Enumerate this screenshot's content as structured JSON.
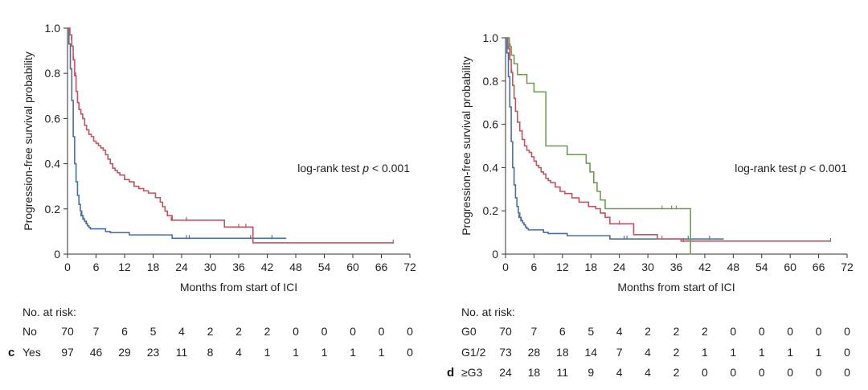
{
  "chart_data": [
    {
      "type": "line",
      "step": true,
      "panel_letter": "c",
      "ylabel": "Progression-free survival probability",
      "xlabel": "Months from start of ICI",
      "annotation_prefix": "log-rank test ",
      "annotation_p": "p",
      "annotation_suffix": " < 0.001",
      "xlim": [
        0,
        72
      ],
      "ylim": [
        0,
        1
      ],
      "xticks": [
        "0",
        "6",
        "12",
        "18",
        "24",
        "30",
        "36",
        "42",
        "48",
        "54",
        "60",
        "66",
        "72"
      ],
      "yticks": [
        "0",
        "0.2",
        "0.4",
        "0.6",
        "0.8",
        "1.0"
      ],
      "risk_title": "No. at risk:",
      "risk_times": [
        0,
        6,
        12,
        18,
        24,
        30,
        36,
        42,
        48,
        54,
        60,
        66,
        72
      ],
      "series": [
        {
          "name": "No",
          "color": "#4a6f9c",
          "x": [
            0,
            0.3,
            0.6,
            0.9,
            1.2,
            1.5,
            1.8,
            2.1,
            2.4,
            2.7,
            3.0,
            3.3,
            3.6,
            3.9,
            4.2,
            4.5,
            4.8,
            8.0,
            9.0,
            13.0,
            22.0,
            45.0,
            46
          ],
          "y": [
            1.0,
            0.93,
            0.82,
            0.68,
            0.52,
            0.4,
            0.32,
            0.26,
            0.22,
            0.19,
            0.17,
            0.155,
            0.145,
            0.135,
            0.125,
            0.118,
            0.112,
            0.1,
            0.095,
            0.085,
            0.07,
            0.07,
            0.07
          ],
          "censor_x": [
            2.8,
            3.2,
            3.6,
            4.0,
            25.0,
            25.6,
            38.5,
            43.0
          ],
          "censor_y": [
            0.17,
            0.155,
            0.145,
            0.135,
            0.07,
            0.07,
            0.07,
            0.07
          ]
        },
        {
          "name": "Yes",
          "color": "#c15462",
          "x": [
            0,
            0.5,
            0.9,
            1.2,
            1.5,
            1.8,
            2.1,
            2.4,
            2.8,
            3.2,
            3.6,
            4.0,
            4.5,
            5.0,
            5.5,
            6.0,
            6.5,
            7.0,
            7.5,
            8.0,
            8.5,
            9.0,
            9.5,
            10.0,
            10.5,
            11.0,
            12.0,
            13.0,
            14.0,
            15.0,
            16.0,
            17.0,
            18.5,
            19.5,
            20.0,
            20.5,
            21.0,
            22.0,
            27.0,
            33.0,
            39.0,
            68.5
          ],
          "y": [
            1.0,
            0.97,
            0.92,
            0.86,
            0.79,
            0.72,
            0.67,
            0.64,
            0.62,
            0.6,
            0.57,
            0.55,
            0.53,
            0.52,
            0.5,
            0.49,
            0.48,
            0.47,
            0.46,
            0.44,
            0.42,
            0.4,
            0.38,
            0.37,
            0.36,
            0.35,
            0.33,
            0.32,
            0.3,
            0.29,
            0.28,
            0.27,
            0.25,
            0.23,
            0.21,
            0.19,
            0.17,
            0.15,
            0.15,
            0.12,
            0.05,
            0.05
          ],
          "censor_x": [
            0.8,
            1.3,
            1.7,
            20.0,
            21.8,
            25.0,
            33.0,
            36.0,
            37.5,
            68.5
          ],
          "censor_y": [
            0.95,
            0.86,
            0.79,
            0.21,
            0.15,
            0.15,
            0.12,
            0.12,
            0.12,
            0.05
          ]
        }
      ],
      "risk_rows": [
        {
          "label": "No",
          "values": [
            "70",
            "7",
            "6",
            "5",
            "4",
            "2",
            "2",
            "2",
            "0",
            "0",
            "0",
            "0",
            "0"
          ]
        },
        {
          "label": "Yes",
          "values": [
            "97",
            "46",
            "29",
            "23",
            "11",
            "8",
            "4",
            "1",
            "1",
            "1",
            "1",
            "1",
            "0"
          ]
        }
      ]
    },
    {
      "type": "line",
      "step": true,
      "panel_letter": "d",
      "ylabel": "Progression-free survival probability",
      "xlabel": "Months from start of ICI",
      "annotation_prefix": "log-rank test ",
      "annotation_p": "p",
      "annotation_suffix": " < 0.001",
      "xlim": [
        0,
        72
      ],
      "ylim": [
        0,
        1
      ],
      "xticks": [
        "0",
        "6",
        "12",
        "18",
        "24",
        "30",
        "36",
        "42",
        "48",
        "54",
        "60",
        "66",
        "72"
      ],
      "yticks": [
        "0",
        "0.2",
        "0.4",
        "0.6",
        "0.8",
        "1.0"
      ],
      "risk_title": "No. at risk:",
      "risk_times": [
        0,
        6,
        12,
        18,
        24,
        30,
        36,
        42,
        48,
        54,
        60,
        66,
        72
      ],
      "series": [
        {
          "name": "G0",
          "color": "#4a6f9c",
          "x": [
            0,
            0.3,
            0.6,
            0.9,
            1.2,
            1.5,
            1.8,
            2.1,
            2.4,
            2.7,
            3.0,
            3.3,
            3.6,
            3.9,
            4.2,
            4.5,
            4.8,
            8.0,
            9.0,
            13.0,
            22.0,
            45.0,
            46
          ],
          "y": [
            1.0,
            0.93,
            0.82,
            0.68,
            0.52,
            0.4,
            0.32,
            0.26,
            0.22,
            0.19,
            0.17,
            0.155,
            0.145,
            0.135,
            0.125,
            0.118,
            0.112,
            0.1,
            0.095,
            0.085,
            0.07,
            0.07,
            0.07
          ],
          "censor_x": [
            2.8,
            3.2,
            25.0,
            25.6,
            38.5,
            43.0
          ],
          "censor_y": [
            0.17,
            0.155,
            0.07,
            0.07,
            0.07,
            0.07
          ]
        },
        {
          "name": "G1/2",
          "color": "#c15462",
          "x": [
            0,
            0.5,
            0.9,
            1.2,
            1.5,
            1.8,
            2.1,
            2.5,
            3.0,
            3.5,
            4.0,
            4.5,
            5.0,
            5.5,
            6.0,
            6.5,
            7.0,
            7.5,
            8.0,
            8.5,
            9.0,
            9.5,
            10.5,
            11.5,
            12.5,
            14.0,
            15.5,
            17.5,
            19.0,
            20.0,
            21.0,
            22.0,
            27.0,
            32.0,
            37.0,
            68.5
          ],
          "y": [
            1.0,
            0.95,
            0.9,
            0.84,
            0.78,
            0.72,
            0.66,
            0.61,
            0.57,
            0.53,
            0.5,
            0.48,
            0.47,
            0.45,
            0.43,
            0.41,
            0.4,
            0.38,
            0.37,
            0.35,
            0.34,
            0.33,
            0.31,
            0.29,
            0.28,
            0.26,
            0.24,
            0.22,
            0.21,
            0.19,
            0.17,
            0.14,
            0.09,
            0.07,
            0.06,
            0.06
          ],
          "censor_x": [
            0.7,
            1.3,
            24.0,
            33.0,
            37.5,
            68.5
          ],
          "censor_y": [
            0.95,
            0.84,
            0.14,
            0.07,
            0.06,
            0.06
          ],
          "end_x": 69
        },
        {
          "name": "≥G3",
          "color": "#6f9e4f",
          "x": [
            0,
            0.8,
            1.2,
            1.8,
            2.5,
            3.2,
            4.5,
            6.0,
            7.0,
            8.5,
            10.5,
            13.0,
            17.0,
            17.8,
            18.6,
            19.3,
            20.0,
            21.0,
            39.0,
            39.2
          ],
          "y": [
            1.0,
            0.96,
            0.92,
            0.88,
            0.83,
            0.83,
            0.79,
            0.75,
            0.75,
            0.5,
            0.5,
            0.46,
            0.42,
            0.38,
            0.33,
            0.29,
            0.25,
            0.21,
            0.0,
            0.0
          ],
          "censor_x": [
            1.0,
            33.0,
            35.0,
            36.0
          ],
          "censor_y": [
            0.96,
            0.21,
            0.21,
            0.21
          ]
        }
      ],
      "risk_rows": [
        {
          "label": "G0",
          "values": [
            "70",
            "7",
            "6",
            "5",
            "4",
            "2",
            "2",
            "2",
            "0",
            "0",
            "0",
            "0",
            "0"
          ]
        },
        {
          "label": "G1/2",
          "values": [
            "73",
            "28",
            "18",
            "14",
            "7",
            "4",
            "2",
            "1",
            "1",
            "1",
            "1",
            "1",
            "0"
          ]
        },
        {
          "label": "≥G3",
          "values": [
            "24",
            "18",
            "11",
            "9",
            "4",
            "4",
            "2",
            "0",
            "0",
            "0",
            "0",
            "0",
            "0"
          ]
        }
      ]
    }
  ]
}
